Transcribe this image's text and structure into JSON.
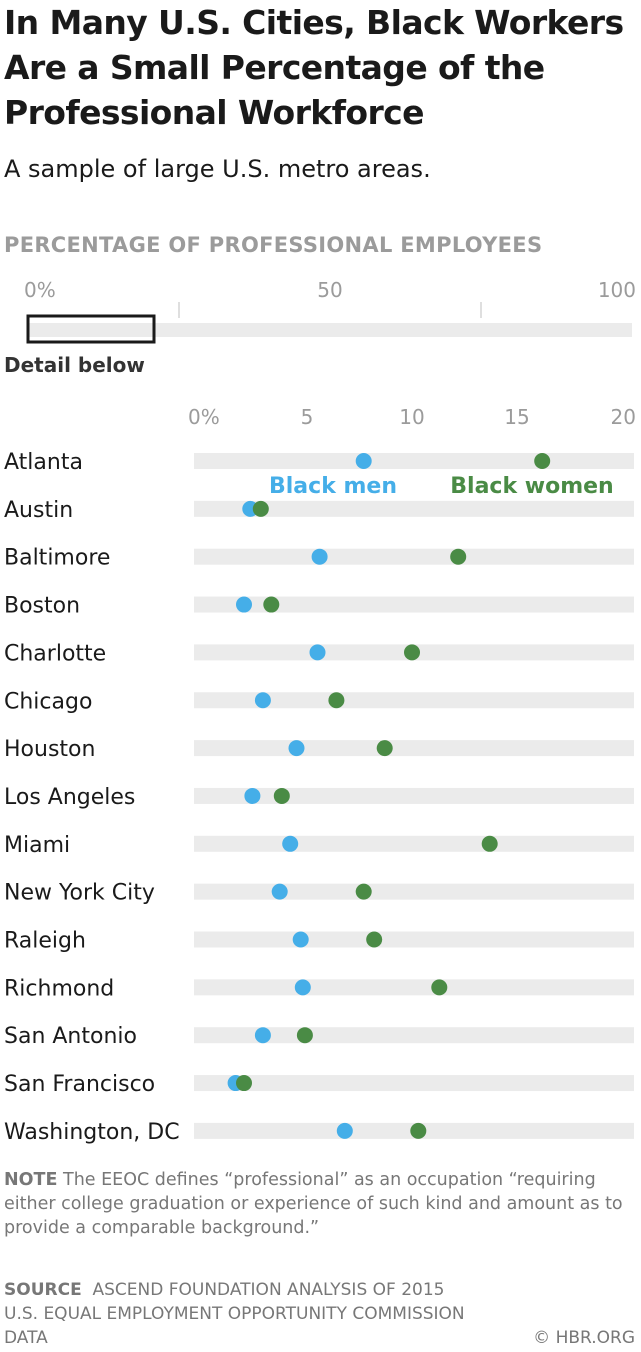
{
  "header": {
    "title": "In Many U.S. Cities, Black Workers Are a Small Percentage of the Professional Workforce",
    "subtitle": "A sample of large U.S. metro areas."
  },
  "overview": {
    "axis_title": "PERCENTAGE OF PROFESSIONAL EMPLOYEES",
    "ticks": [
      "0%",
      "50",
      "100"
    ],
    "tick_values": [
      0,
      50,
      100
    ],
    "xlim": [
      0,
      100
    ],
    "detail_range": [
      0,
      20
    ],
    "detail_label": "Detail below"
  },
  "chart_data": {
    "type": "scatter",
    "xlim": [
      0,
      20
    ],
    "x_ticks": [
      "0%",
      "5",
      "10",
      "15",
      "20"
    ],
    "x_tick_values": [
      0,
      5,
      10,
      15,
      20
    ],
    "categories": [
      "Atlanta",
      "Austin",
      "Baltimore",
      "Boston",
      "Charlotte",
      "Chicago",
      "Houston",
      "Los Angeles",
      "Miami",
      "New York City",
      "Raleigh",
      "Richmond",
      "San Antonio",
      "San Francisco",
      "Washington, DC"
    ],
    "series": [
      {
        "name": "Black men",
        "color": "#45aee8",
        "values": [
          7.7,
          2.3,
          5.6,
          2.0,
          5.5,
          2.9,
          4.5,
          2.4,
          4.2,
          3.7,
          4.7,
          4.8,
          2.9,
          1.6,
          6.8
        ]
      },
      {
        "name": "Black women",
        "color": "#4a8b45",
        "values": [
          16.2,
          2.8,
          12.2,
          3.3,
          10.0,
          6.4,
          8.7,
          3.8,
          13.7,
          7.7,
          8.2,
          11.3,
          4.9,
          2.0,
          10.3
        ]
      }
    ],
    "grid": false,
    "legend": "inline near top row"
  },
  "footer": {
    "note_label": "NOTE",
    "note_text": "The EEOC defines “professional” as an occupation “requiring either college graduation or experience of such kind and amount as to provide a comparable background.”",
    "source_label": "SOURCE",
    "source_text": "Ascend Foundation analysis of 2015 U.S. Equal Employment Opportunity Commission data",
    "credit": "© HBR.ORG"
  },
  "colors": {
    "track": "#ebebeb",
    "axis_text": "#9b9b9b",
    "men": "#45aee8",
    "women": "#4a8b45"
  }
}
